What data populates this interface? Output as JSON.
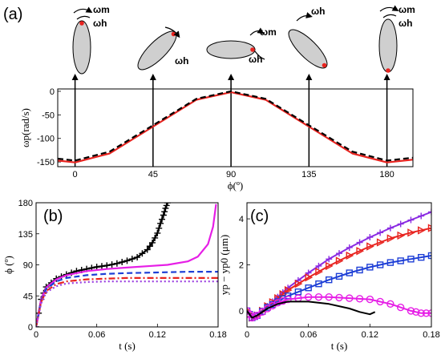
{
  "chart_data": [
    {
      "panel": "(a)",
      "type": "line",
      "xlabel": "ϕ(º)",
      "ylabel": "ωp(rad/s)",
      "xlim": [
        -10,
        195
      ],
      "ylim": [
        -160,
        5
      ],
      "xticks": [
        "0",
        "45",
        "90",
        "135",
        "180"
      ],
      "yticks": [
        "0",
        "-50",
        "-100",
        "-150"
      ],
      "grid": false,
      "series": [
        {
          "style": "solid",
          "color": "#e8231f",
          "x": [
            -10,
            0,
            20,
            45,
            70,
            90,
            110,
            135,
            160,
            180,
            195
          ],
          "y": [
            -147,
            -151,
            -132,
            -75,
            -18,
            -2,
            -18,
            -75,
            -132,
            -151,
            -145
          ]
        },
        {
          "style": "dashed",
          "color": "#000000",
          "x": [
            -10,
            0,
            20,
            45,
            70,
            90,
            110,
            135,
            160,
            180,
            195
          ],
          "y": [
            -143,
            -147,
            -128,
            -72,
            -16,
            0,
            -16,
            -72,
            -128,
            -147,
            -141
          ]
        }
      ],
      "arrow_x": [
        0,
        45,
        90,
        135,
        180
      ],
      "annotations": {
        "omega_m": "ωm",
        "omega_h": "ωh"
      }
    },
    {
      "panel": "(b)",
      "type": "line",
      "xlabel": "t (s)",
      "ylabel": "ϕ (º)",
      "xlim": [
        0,
        0.18
      ],
      "ylim": [
        0,
        180
      ],
      "xticks": [
        "0",
        "0.06",
        "0.12",
        "0.18"
      ],
      "yticks": [
        "0",
        "45",
        "90",
        "135",
        "180"
      ],
      "grid": false,
      "series": [
        {
          "color": "#000000",
          "style": "solid",
          "marker": "plus",
          "x": [
            0,
            0.005,
            0.01,
            0.02,
            0.03,
            0.04,
            0.05,
            0.06,
            0.07,
            0.08,
            0.09,
            0.1,
            0.11,
            0.115,
            0.12,
            0.123,
            0.126,
            0.128,
            0.13
          ],
          "y": [
            0,
            40,
            58,
            70,
            76,
            81,
            84,
            87,
            89,
            92,
            96,
            101,
            112,
            122,
            136,
            150,
            162,
            172,
            180
          ]
        },
        {
          "color": "#e61ee6",
          "style": "solid",
          "x": [
            0,
            0.005,
            0.01,
            0.02,
            0.03,
            0.05,
            0.07,
            0.09,
            0.11,
            0.13,
            0.15,
            0.16,
            0.17,
            0.175,
            0.178
          ],
          "y": [
            0,
            40,
            57,
            69,
            75,
            81,
            84,
            86,
            88,
            90,
            95,
            102,
            120,
            145,
            178
          ]
        },
        {
          "color": "#1e3fd6",
          "style": "dashed",
          "x": [
            0,
            0.005,
            0.01,
            0.02,
            0.03,
            0.05,
            0.07,
            0.09,
            0.12,
            0.15,
            0.18
          ],
          "y": [
            0,
            38,
            55,
            66,
            71,
            75,
            77,
            78,
            79,
            80,
            80
          ]
        },
        {
          "color": "#e8231f",
          "style": "dashdot",
          "x": [
            0,
            0.005,
            0.01,
            0.02,
            0.03,
            0.05,
            0.07,
            0.09,
            0.12,
            0.15,
            0.18
          ],
          "y": [
            0,
            36,
            52,
            62,
            66,
            69,
            70,
            71,
            71,
            71,
            71
          ]
        },
        {
          "color": "#9b3fe0",
          "style": "dotted",
          "x": [
            0,
            0.005,
            0.01,
            0.02,
            0.03,
            0.05,
            0.07,
            0.09,
            0.12,
            0.15,
            0.18
          ],
          "y": [
            0,
            34,
            50,
            59,
            63,
            65,
            66,
            66,
            66,
            66,
            66
          ]
        }
      ]
    },
    {
      "panel": "(c)",
      "type": "line",
      "xlabel": "t (s)",
      "ylabel": "yp − yp0 (μm)",
      "xlim": [
        0,
        0.18
      ],
      "ylim": [
        -0.7,
        4.7
      ],
      "xticks": [
        "0",
        "0.06",
        "0.12",
        "0.18"
      ],
      "yticks": [
        "0",
        "2",
        "4"
      ],
      "grid": false,
      "series": [
        {
          "color": "#8a2be2",
          "style": "solid",
          "marker": "plus",
          "x": [
            0,
            0.005,
            0.01,
            0.02,
            0.03,
            0.04,
            0.06,
            0.08,
            0.1,
            0.12,
            0.14,
            0.16,
            0.18
          ],
          "y": [
            0,
            -0.3,
            -0.2,
            0.2,
            0.6,
            1.0,
            1.65,
            2.25,
            2.75,
            3.2,
            3.6,
            3.95,
            4.3
          ]
        },
        {
          "color": "#e8231f",
          "style": "solid",
          "marker": "triangle-right",
          "x": [
            0,
            0.005,
            0.01,
            0.02,
            0.03,
            0.04,
            0.06,
            0.08,
            0.1,
            0.12,
            0.14,
            0.16,
            0.18
          ],
          "y": [
            0,
            -0.3,
            -0.2,
            0.2,
            0.55,
            0.9,
            1.45,
            1.95,
            2.4,
            2.8,
            3.15,
            3.4,
            3.6
          ]
        },
        {
          "color": "#1e3fd6",
          "style": "solid",
          "marker": "square",
          "x": [
            0,
            0.005,
            0.01,
            0.02,
            0.03,
            0.04,
            0.06,
            0.08,
            0.1,
            0.12,
            0.14,
            0.16,
            0.18
          ],
          "y": [
            0,
            -0.3,
            -0.2,
            0.15,
            0.4,
            0.65,
            1.0,
            1.35,
            1.65,
            1.9,
            2.1,
            2.25,
            2.4
          ]
        },
        {
          "color": "#e61ee6",
          "style": "solid",
          "marker": "circle",
          "x": [
            0,
            0.005,
            0.01,
            0.02,
            0.03,
            0.04,
            0.06,
            0.08,
            0.1,
            0.12,
            0.14,
            0.16,
            0.17,
            0.18
          ],
          "y": [
            0,
            -0.3,
            -0.2,
            0.1,
            0.35,
            0.5,
            0.6,
            0.6,
            0.55,
            0.5,
            0.3,
            0.0,
            -0.1,
            -0.1
          ]
        },
        {
          "color": "#000000",
          "style": "solid",
          "x": [
            0,
            0.005,
            0.01,
            0.02,
            0.03,
            0.04,
            0.06,
            0.08,
            0.1,
            0.11,
            0.12,
            0.125
          ],
          "y": [
            0,
            -0.3,
            -0.2,
            0.1,
            0.3,
            0.4,
            0.4,
            0.3,
            0.1,
            -0.05,
            -0.15,
            -0.05
          ]
        }
      ]
    }
  ]
}
